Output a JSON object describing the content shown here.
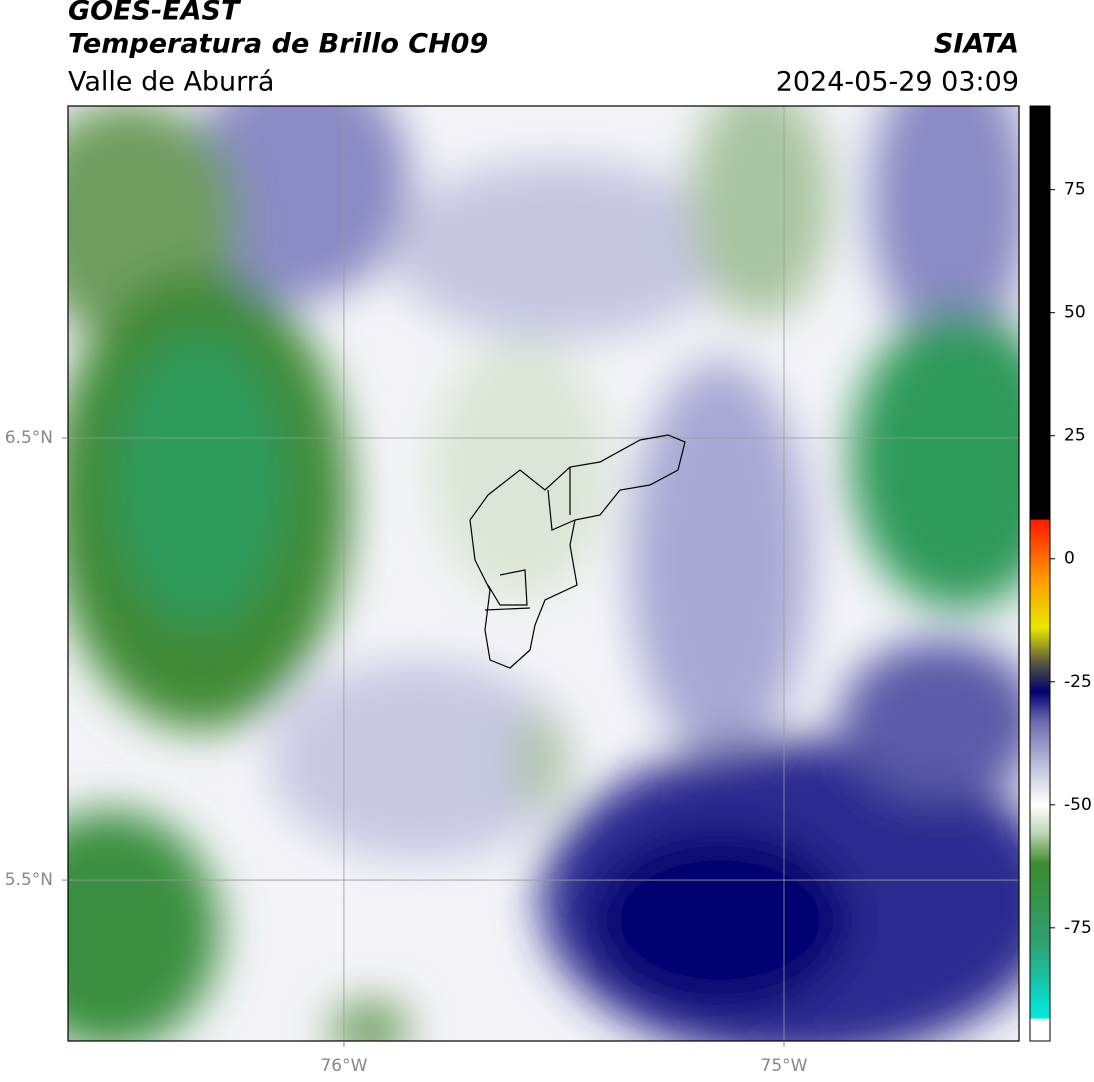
{
  "header": {
    "title": "GOES-EAST",
    "subtitle": "Temperatura de Brillo CH09",
    "region": "Valle de Aburrá",
    "source": "SIATA",
    "datetime": "2024-05-29 03:09"
  },
  "map": {
    "lonlim": [
      -76.627,
      -74.466
    ],
    "latlim": [
      5.136,
      7.251
    ],
    "lonticks": [
      {
        "value": -76,
        "label": "76°W"
      },
      {
        "value": -75,
        "label": "75°W"
      }
    ],
    "latticks": [
      {
        "value": 6.5,
        "label": "6.5°N"
      },
      {
        "value": 5.5,
        "label": "5.5°N"
      }
    ],
    "grid": true
  },
  "colorbar": {
    "lim": [
      -98,
      92
    ],
    "ticks": [
      75,
      50,
      25,
      0,
      -25,
      -50,
      -75
    ],
    "stops": [
      {
        "value": -98,
        "color": "#ffffff"
      },
      {
        "value": -93.5,
        "color": "#ffffff"
      },
      {
        "value": -93.4,
        "color": "#00ebe0"
      },
      {
        "value": -78,
        "color": "#2fa070"
      },
      {
        "value": -62,
        "color": "#3d8a2e"
      },
      {
        "value": -56,
        "color": "#b9d3b0"
      },
      {
        "value": -50,
        "color": "#ffffff"
      },
      {
        "value": -43,
        "color": "#c8c8e2"
      },
      {
        "value": -33,
        "color": "#6a6aae"
      },
      {
        "value": -27,
        "color": "#000070"
      },
      {
        "value": -21,
        "color": "#5a5a40"
      },
      {
        "value": -14,
        "color": "#e8e800"
      },
      {
        "value": -4,
        "color": "#ff9900"
      },
      {
        "value": 7.9,
        "color": "#ff1a00"
      },
      {
        "value": 8,
        "color": "#000000"
      },
      {
        "value": 92,
        "color": "#000000"
      }
    ]
  }
}
